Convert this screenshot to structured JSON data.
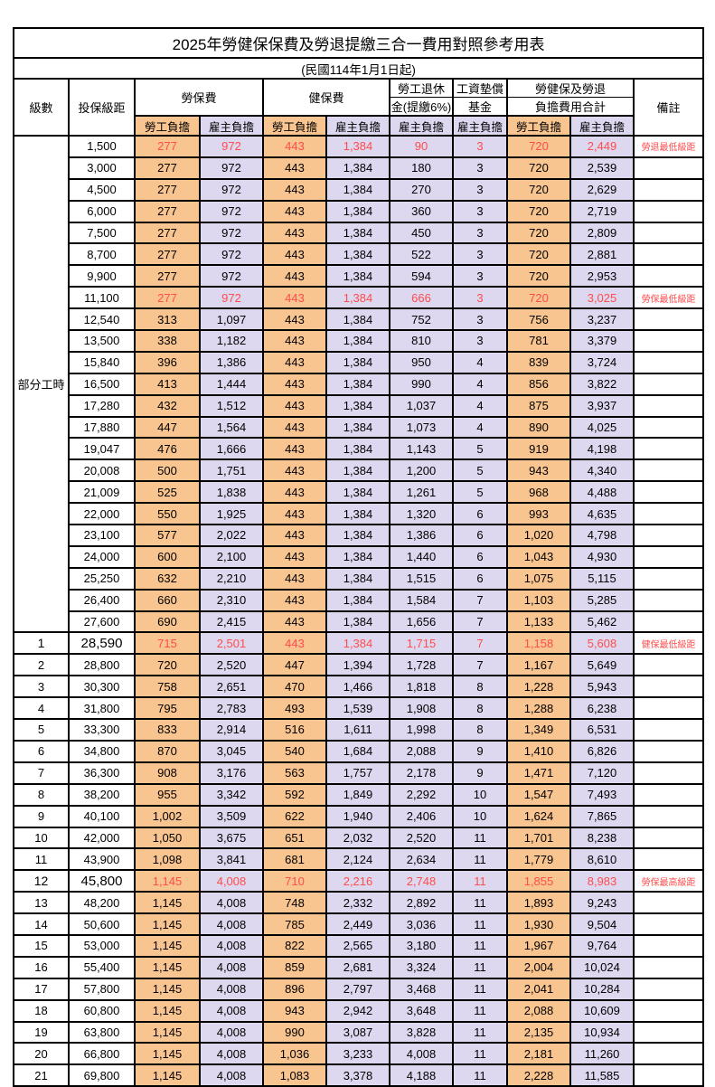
{
  "title": "2025年勞健保保費及勞退提繳三合一費用對照參考用表",
  "subtitle": "(民國114年1月1日起)",
  "colors": {
    "employee_bg": "#F8C48F",
    "employer_bg": "#DDD8EF",
    "highlight_red": "#FF4C4C",
    "border": "#000000",
    "background": "#FFFFFF"
  },
  "table": {
    "headers": {
      "level": "級數",
      "bracket": "投保級距",
      "labor_fee": "勞保費",
      "health_fee": "健保費",
      "pension_l1": "勞工退休",
      "pension_l2": "金(提繳6%)",
      "fund_l1": "工資墊償",
      "fund_l2": "基金",
      "total_l1": "勞健保及勞退",
      "total_l2": "負擔費用合計",
      "remark": "備註",
      "employee": "勞工負擔",
      "employer": "雇主負擔"
    },
    "part_time_label": "部分工時",
    "rows": [
      {
        "level": "",
        "bracket": "1,500",
        "values": [
          "277",
          "972",
          "443",
          "1,384",
          "90",
          "3",
          "720",
          "2,449"
        ],
        "remark": "勞退最低級距",
        "red": true,
        "key": false
      },
      {
        "level": "",
        "bracket": "3,000",
        "values": [
          "277",
          "972",
          "443",
          "1,384",
          "180",
          "3",
          "720",
          "2,539"
        ],
        "remark": "",
        "red": false,
        "key": false
      },
      {
        "level": "",
        "bracket": "4,500",
        "values": [
          "277",
          "972",
          "443",
          "1,384",
          "270",
          "3",
          "720",
          "2,629"
        ],
        "remark": "",
        "red": false,
        "key": false
      },
      {
        "level": "",
        "bracket": "6,000",
        "values": [
          "277",
          "972",
          "443",
          "1,384",
          "360",
          "3",
          "720",
          "2,719"
        ],
        "remark": "",
        "red": false,
        "key": false
      },
      {
        "level": "",
        "bracket": "7,500",
        "values": [
          "277",
          "972",
          "443",
          "1,384",
          "450",
          "3",
          "720",
          "2,809"
        ],
        "remark": "",
        "red": false,
        "key": false
      },
      {
        "level": "",
        "bracket": "8,700",
        "values": [
          "277",
          "972",
          "443",
          "1,384",
          "522",
          "3",
          "720",
          "2,881"
        ],
        "remark": "",
        "red": false,
        "key": false
      },
      {
        "level": "",
        "bracket": "9,900",
        "values": [
          "277",
          "972",
          "443",
          "1,384",
          "594",
          "3",
          "720",
          "2,953"
        ],
        "remark": "",
        "red": false,
        "key": false
      },
      {
        "level": "",
        "bracket": "11,100",
        "values": [
          "277",
          "972",
          "443",
          "1,384",
          "666",
          "3",
          "720",
          "3,025"
        ],
        "remark": "勞保最低級距",
        "red": true,
        "key": false
      },
      {
        "level": "",
        "bracket": "12,540",
        "values": [
          "313",
          "1,097",
          "443",
          "1,384",
          "752",
          "3",
          "756",
          "3,237"
        ],
        "remark": "",
        "red": false,
        "key": false
      },
      {
        "level": "",
        "bracket": "13,500",
        "values": [
          "338",
          "1,182",
          "443",
          "1,384",
          "810",
          "3",
          "781",
          "3,379"
        ],
        "remark": "",
        "red": false,
        "key": false
      },
      {
        "level": "",
        "bracket": "15,840",
        "values": [
          "396",
          "1,386",
          "443",
          "1,384",
          "950",
          "4",
          "839",
          "3,724"
        ],
        "remark": "",
        "red": false,
        "key": false
      },
      {
        "level": "",
        "bracket": "16,500",
        "values": [
          "413",
          "1,444",
          "443",
          "1,384",
          "990",
          "4",
          "856",
          "3,822"
        ],
        "remark": "",
        "red": false,
        "key": false
      },
      {
        "level": "",
        "bracket": "17,280",
        "values": [
          "432",
          "1,512",
          "443",
          "1,384",
          "1,037",
          "4",
          "875",
          "3,937"
        ],
        "remark": "",
        "red": false,
        "key": false
      },
      {
        "level": "",
        "bracket": "17,880",
        "values": [
          "447",
          "1,564",
          "443",
          "1,384",
          "1,073",
          "4",
          "890",
          "4,025"
        ],
        "remark": "",
        "red": false,
        "key": false
      },
      {
        "level": "",
        "bracket": "19,047",
        "values": [
          "476",
          "1,666",
          "443",
          "1,384",
          "1,143",
          "5",
          "919",
          "4,198"
        ],
        "remark": "",
        "red": false,
        "key": false
      },
      {
        "level": "",
        "bracket": "20,008",
        "values": [
          "500",
          "1,751",
          "443",
          "1,384",
          "1,200",
          "5",
          "943",
          "4,340"
        ],
        "remark": "",
        "red": false,
        "key": false
      },
      {
        "level": "",
        "bracket": "21,009",
        "values": [
          "525",
          "1,838",
          "443",
          "1,384",
          "1,261",
          "5",
          "968",
          "4,488"
        ],
        "remark": "",
        "red": false,
        "key": false
      },
      {
        "level": "",
        "bracket": "22,000",
        "values": [
          "550",
          "1,925",
          "443",
          "1,384",
          "1,320",
          "6",
          "993",
          "4,635"
        ],
        "remark": "",
        "red": false,
        "key": false
      },
      {
        "level": "",
        "bracket": "23,100",
        "values": [
          "577",
          "2,022",
          "443",
          "1,384",
          "1,386",
          "6",
          "1,020",
          "4,798"
        ],
        "remark": "",
        "red": false,
        "key": false
      },
      {
        "level": "",
        "bracket": "24,000",
        "values": [
          "600",
          "2,100",
          "443",
          "1,384",
          "1,440",
          "6",
          "1,043",
          "4,930"
        ],
        "remark": "",
        "red": false,
        "key": false
      },
      {
        "level": "",
        "bracket": "25,250",
        "values": [
          "632",
          "2,210",
          "443",
          "1,384",
          "1,515",
          "6",
          "1,075",
          "5,115"
        ],
        "remark": "",
        "red": false,
        "key": false
      },
      {
        "level": "",
        "bracket": "26,400",
        "values": [
          "660",
          "2,310",
          "443",
          "1,384",
          "1,584",
          "7",
          "1,103",
          "5,285"
        ],
        "remark": "",
        "red": false,
        "key": false
      },
      {
        "level": "",
        "bracket": "27,600",
        "values": [
          "690",
          "2,415",
          "443",
          "1,384",
          "1,656",
          "7",
          "1,133",
          "5,462"
        ],
        "remark": "",
        "red": false,
        "key": false
      },
      {
        "level": "1",
        "bracket": "28,590",
        "values": [
          "715",
          "2,501",
          "443",
          "1,384",
          "1,715",
          "7",
          "1,158",
          "5,608"
        ],
        "remark": "健保最低級距",
        "red": true,
        "key": true
      },
      {
        "level": "2",
        "bracket": "28,800",
        "values": [
          "720",
          "2,520",
          "447",
          "1,394",
          "1,728",
          "7",
          "1,167",
          "5,649"
        ],
        "remark": "",
        "red": false,
        "key": false
      },
      {
        "level": "3",
        "bracket": "30,300",
        "values": [
          "758",
          "2,651",
          "470",
          "1,466",
          "1,818",
          "8",
          "1,228",
          "5,943"
        ],
        "remark": "",
        "red": false,
        "key": false
      },
      {
        "level": "4",
        "bracket": "31,800",
        "values": [
          "795",
          "2,783",
          "493",
          "1,539",
          "1,908",
          "8",
          "1,288",
          "6,238"
        ],
        "remark": "",
        "red": false,
        "key": false
      },
      {
        "level": "5",
        "bracket": "33,300",
        "values": [
          "833",
          "2,914",
          "516",
          "1,611",
          "1,998",
          "8",
          "1,349",
          "6,531"
        ],
        "remark": "",
        "red": false,
        "key": false
      },
      {
        "level": "6",
        "bracket": "34,800",
        "values": [
          "870",
          "3,045",
          "540",
          "1,684",
          "2,088",
          "9",
          "1,410",
          "6,826"
        ],
        "remark": "",
        "red": false,
        "key": false
      },
      {
        "level": "7",
        "bracket": "36,300",
        "values": [
          "908",
          "3,176",
          "563",
          "1,757",
          "2,178",
          "9",
          "1,471",
          "7,120"
        ],
        "remark": "",
        "red": false,
        "key": false
      },
      {
        "level": "8",
        "bracket": "38,200",
        "values": [
          "955",
          "3,342",
          "592",
          "1,849",
          "2,292",
          "10",
          "1,547",
          "7,493"
        ],
        "remark": "",
        "red": false,
        "key": false
      },
      {
        "level": "9",
        "bracket": "40,100",
        "values": [
          "1,002",
          "3,509",
          "622",
          "1,940",
          "2,406",
          "10",
          "1,624",
          "7,865"
        ],
        "remark": "",
        "red": false,
        "key": false
      },
      {
        "level": "10",
        "bracket": "42,000",
        "values": [
          "1,050",
          "3,675",
          "651",
          "2,032",
          "2,520",
          "11",
          "1,701",
          "8,238"
        ],
        "remark": "",
        "red": false,
        "key": false
      },
      {
        "level": "11",
        "bracket": "43,900",
        "values": [
          "1,098",
          "3,841",
          "681",
          "2,124",
          "2,634",
          "11",
          "1,779",
          "8,610"
        ],
        "remark": "",
        "red": false,
        "key": false
      },
      {
        "level": "12",
        "bracket": "45,800",
        "values": [
          "1,145",
          "4,008",
          "710",
          "2,216",
          "2,748",
          "11",
          "1,855",
          "8,983"
        ],
        "remark": "勞保最高級距",
        "red": true,
        "key": true
      },
      {
        "level": "13",
        "bracket": "48,200",
        "values": [
          "1,145",
          "4,008",
          "748",
          "2,332",
          "2,892",
          "11",
          "1,893",
          "9,243"
        ],
        "remark": "",
        "red": false,
        "key": false
      },
      {
        "level": "14",
        "bracket": "50,600",
        "values": [
          "1,145",
          "4,008",
          "785",
          "2,449",
          "3,036",
          "11",
          "1,930",
          "9,504"
        ],
        "remark": "",
        "red": false,
        "key": false
      },
      {
        "level": "15",
        "bracket": "53,000",
        "values": [
          "1,145",
          "4,008",
          "822",
          "2,565",
          "3,180",
          "11",
          "1,967",
          "9,764"
        ],
        "remark": "",
        "red": false,
        "key": false
      },
      {
        "level": "16",
        "bracket": "55,400",
        "values": [
          "1,145",
          "4,008",
          "859",
          "2,681",
          "3,324",
          "11",
          "2,004",
          "10,024"
        ],
        "remark": "",
        "red": false,
        "key": false
      },
      {
        "level": "17",
        "bracket": "57,800",
        "values": [
          "1,145",
          "4,008",
          "896",
          "2,797",
          "3,468",
          "11",
          "2,041",
          "10,284"
        ],
        "remark": "",
        "red": false,
        "key": false
      },
      {
        "level": "18",
        "bracket": "60,800",
        "values": [
          "1,145",
          "4,008",
          "943",
          "2,942",
          "3,648",
          "11",
          "2,088",
          "10,609"
        ],
        "remark": "",
        "red": false,
        "key": false
      },
      {
        "level": "19",
        "bracket": "63,800",
        "values": [
          "1,145",
          "4,008",
          "990",
          "3,087",
          "3,828",
          "11",
          "2,135",
          "10,934"
        ],
        "remark": "",
        "red": false,
        "key": false
      },
      {
        "level": "20",
        "bracket": "66,800",
        "values": [
          "1,145",
          "4,008",
          "1,036",
          "3,233",
          "4,008",
          "11",
          "2,181",
          "11,260"
        ],
        "remark": "",
        "red": false,
        "key": false
      },
      {
        "level": "21",
        "bracket": "69,800",
        "values": [
          "1,145",
          "4,008",
          "1,083",
          "3,378",
          "4,188",
          "11",
          "2,228",
          "11,585"
        ],
        "remark": "",
        "red": false,
        "key": false
      }
    ]
  }
}
